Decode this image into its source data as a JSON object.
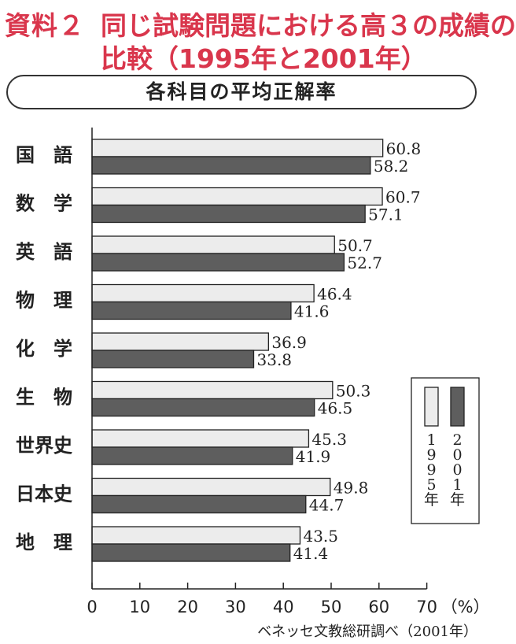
{
  "header": {
    "label": "資料２",
    "title_line1": "同じ試験問題における高３の成績の",
    "title_line2": "比較（1995年と2001年）"
  },
  "subtitle": "各科目の平均正解率",
  "source": "ベネッセ文教総研調べ（2001年）",
  "colors": {
    "title": "#d9364c",
    "bar_1995": "#ececec",
    "bar_2001": "#5e5e5e",
    "axis": "#222222"
  },
  "chart_data": {
    "type": "bar",
    "orientation": "horizontal",
    "categories": [
      "国　語",
      "数　学",
      "英　語",
      "物　理",
      "化　学",
      "生　物",
      "世界史",
      "日本史",
      "地　理"
    ],
    "series": [
      {
        "name": "1995年",
        "legend_label": "1\n9\n9\n5\n年",
        "values": [
          60.8,
          60.7,
          50.7,
          46.4,
          36.9,
          50.3,
          45.3,
          49.8,
          43.5
        ]
      },
      {
        "name": "2001年",
        "legend_label": "2\n0\n0\n1\n年",
        "values": [
          58.2,
          57.1,
          52.7,
          41.6,
          33.8,
          46.5,
          41.9,
          44.7,
          41.4
        ]
      }
    ],
    "value_labels": [
      [
        "60.8",
        "58.2"
      ],
      [
        "60.7",
        "57.1"
      ],
      [
        "50.7",
        "52.7"
      ],
      [
        "46.4",
        "41.6"
      ],
      [
        "36.9",
        "33.8"
      ],
      [
        "50.3",
        "46.5"
      ],
      [
        "45.3",
        "41.9"
      ],
      [
        "49.8",
        "44.7"
      ],
      [
        "43.5",
        "41.4"
      ]
    ],
    "xlim": [
      0,
      70
    ],
    "xticks": [
      0,
      10,
      20,
      30,
      40,
      50,
      60,
      70
    ],
    "xtick_labels": [
      "0",
      "10",
      "20",
      "30",
      "40",
      "50",
      "60",
      "70"
    ],
    "xunit": "（%）",
    "grid": false,
    "legend_position": "right"
  }
}
